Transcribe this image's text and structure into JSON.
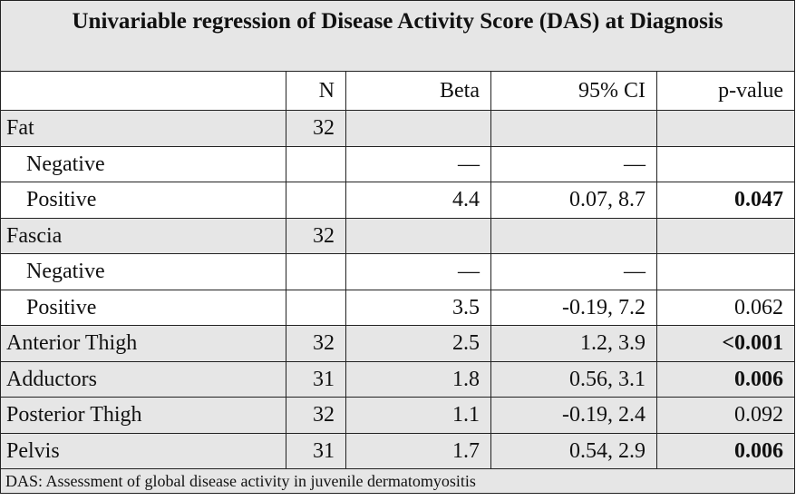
{
  "title": "Univariable regression of Disease Activity Score (DAS) at Diagnosis",
  "columns": [
    "",
    "N",
    "Beta",
    "95% CI",
    "p-value"
  ],
  "rows": [
    {
      "label": "Fat",
      "n": "32",
      "beta": "",
      "ci": "",
      "p": "",
      "indent": false,
      "bold_p": false,
      "shaded": true
    },
    {
      "label": "Negative",
      "n": "",
      "beta": "—",
      "ci": "—",
      "p": "",
      "indent": true,
      "bold_p": false,
      "shaded": false
    },
    {
      "label": "Positive",
      "n": "",
      "beta": "4.4",
      "ci": "0.07, 8.7",
      "p": "0.047",
      "indent": true,
      "bold_p": true,
      "shaded": false
    },
    {
      "label": "Fascia",
      "n": "32",
      "beta": "",
      "ci": "",
      "p": "",
      "indent": false,
      "bold_p": false,
      "shaded": true
    },
    {
      "label": "Negative",
      "n": "",
      "beta": "—",
      "ci": "—",
      "p": "",
      "indent": true,
      "bold_p": false,
      "shaded": false
    },
    {
      "label": "Positive",
      "n": "",
      "beta": "3.5",
      "ci": "-0.19, 7.2",
      "p": "0.062",
      "indent": true,
      "bold_p": false,
      "shaded": false
    },
    {
      "label": "Anterior Thigh",
      "n": "32",
      "beta": "2.5",
      "ci": "1.2, 3.9",
      "p": "<0.001",
      "indent": false,
      "bold_p": true,
      "shaded": true
    },
    {
      "label": "Adductors",
      "n": "31",
      "beta": "1.8",
      "ci": "0.56, 3.1",
      "p": "0.006",
      "indent": false,
      "bold_p": true,
      "shaded": true
    },
    {
      "label": "Posterior Thigh",
      "n": "32",
      "beta": "1.1",
      "ci": "-0.19, 2.4",
      "p": "0.092",
      "indent": false,
      "bold_p": false,
      "shaded": true
    },
    {
      "label": "Pelvis",
      "n": "31",
      "beta": "1.7",
      "ci": "0.54, 2.9",
      "p": "0.006",
      "indent": false,
      "bold_p": true,
      "shaded": true
    }
  ],
  "footnote": "DAS: Assessment of global disease activity in juvenile dermatomyositis",
  "colors": {
    "shade": "#e6e6e6",
    "border": "#222222"
  }
}
